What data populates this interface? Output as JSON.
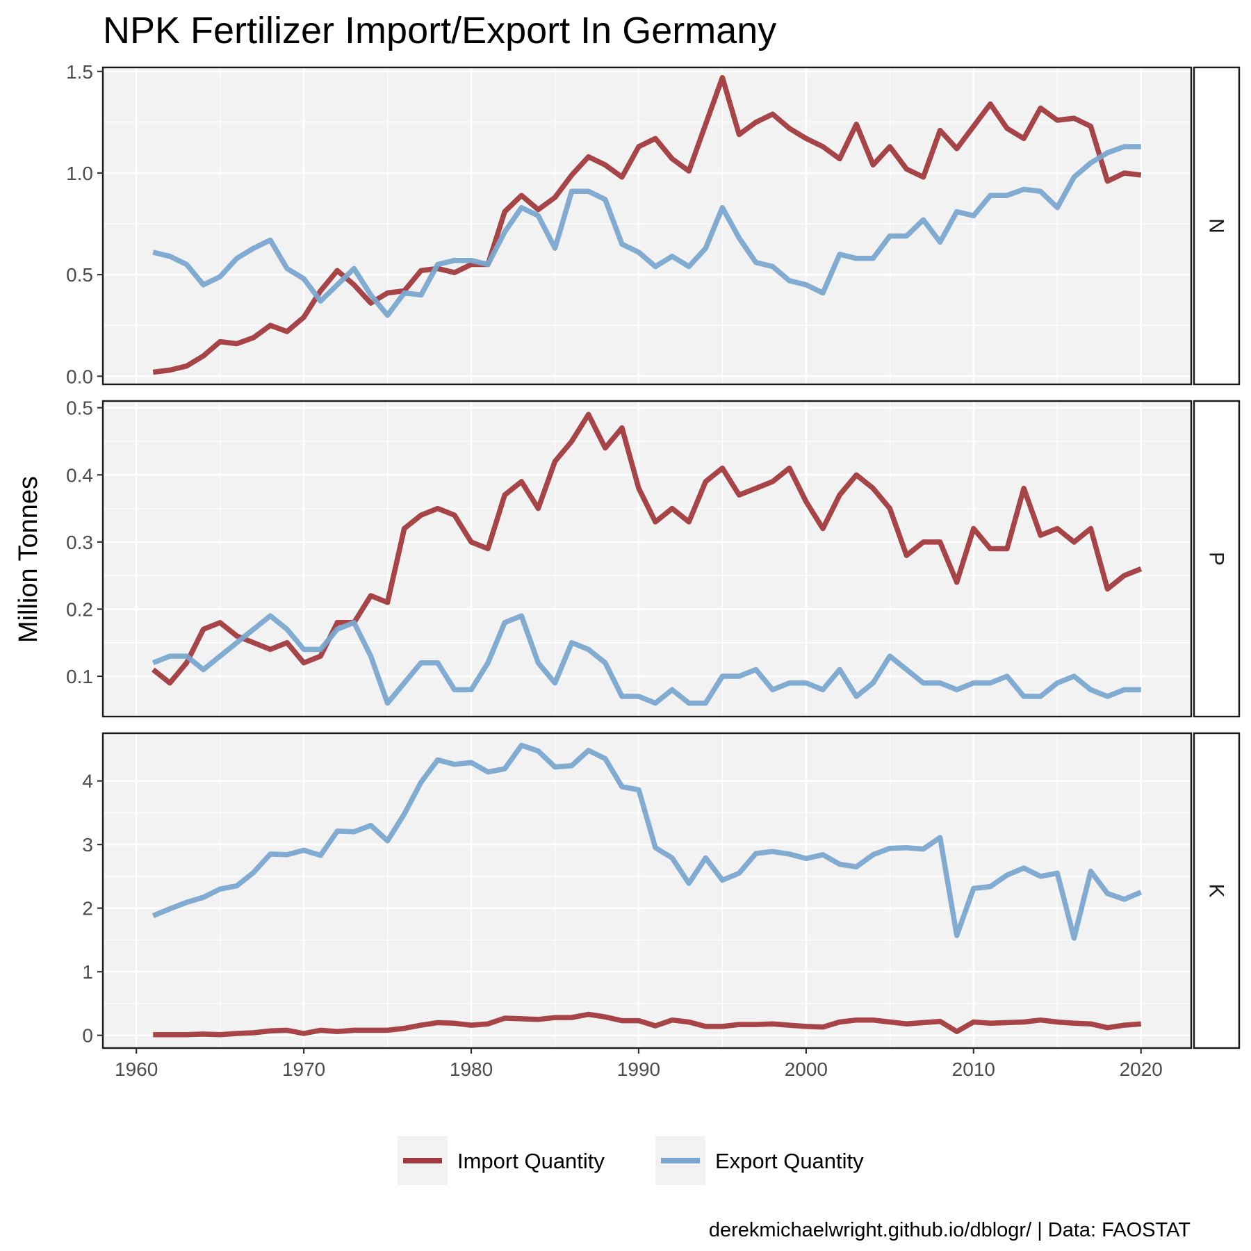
{
  "chart_data": {
    "type": "line",
    "title": "NPK Fertilizer Import/Export In Germany",
    "ylabel": "Million Tonnes",
    "xlabel": "",
    "caption": "derekmichaelwright.github.io/dblogr/ | Data: FAOSTAT",
    "x_ticks": [
      1960,
      1970,
      1980,
      1990,
      2000,
      2010,
      2020
    ],
    "xlim": [
      1958,
      2023
    ],
    "grid": true,
    "legend_position": "bottom",
    "series_styles": [
      {
        "name": "Import Quantity",
        "color": "#a13a3e"
      },
      {
        "name": "Export Quantity",
        "color": "#7aa6cf"
      }
    ],
    "x": [
      1961,
      1962,
      1963,
      1964,
      1965,
      1966,
      1967,
      1968,
      1969,
      1970,
      1971,
      1972,
      1973,
      1974,
      1975,
      1976,
      1977,
      1978,
      1979,
      1980,
      1981,
      1982,
      1983,
      1984,
      1985,
      1986,
      1987,
      1988,
      1989,
      1990,
      1991,
      1992,
      1993,
      1994,
      1995,
      1996,
      1997,
      1998,
      1999,
      2000,
      2001,
      2002,
      2003,
      2004,
      2005,
      2006,
      2007,
      2008,
      2009,
      2010,
      2011,
      2012,
      2013,
      2014,
      2015,
      2016,
      2017,
      2018,
      2019,
      2020
    ],
    "panels": [
      {
        "label": "N",
        "ylim": [
          -0.04,
          1.52
        ],
        "y_ticks": [
          0.0,
          0.5,
          1.0,
          1.5
        ],
        "y_tick_labels": [
          "0.0",
          "0.5",
          "1.0",
          "1.5"
        ],
        "series": [
          {
            "name": "Import Quantity",
            "values": [
              0.02,
              0.03,
              0.05,
              0.1,
              0.17,
              0.16,
              0.19,
              0.25,
              0.22,
              0.29,
              0.42,
              0.52,
              0.45,
              0.36,
              0.41,
              0.42,
              0.52,
              0.53,
              0.51,
              0.55,
              0.55,
              0.81,
              0.89,
              0.82,
              0.88,
              0.99,
              1.08,
              1.04,
              0.98,
              1.13,
              1.17,
              1.07,
              1.01,
              1.24,
              1.47,
              1.19,
              1.25,
              1.29,
              1.22,
              1.17,
              1.13,
              1.07,
              1.24,
              1.04,
              1.13,
              1.02,
              0.98,
              1.21,
              1.12,
              1.23,
              1.34,
              1.22,
              1.17,
              1.32,
              1.26,
              1.27,
              1.23,
              0.96,
              1.0,
              0.99
            ]
          },
          {
            "name": "Export Quantity",
            "values": [
              0.61,
              0.59,
              0.55,
              0.45,
              0.49,
              0.58,
              0.63,
              0.67,
              0.53,
              0.48,
              0.37,
              0.45,
              0.53,
              0.4,
              0.3,
              0.41,
              0.4,
              0.55,
              0.57,
              0.57,
              0.55,
              0.71,
              0.83,
              0.79,
              0.63,
              0.91,
              0.91,
              0.87,
              0.65,
              0.61,
              0.54,
              0.59,
              0.54,
              0.63,
              0.83,
              0.68,
              0.56,
              0.54,
              0.47,
              0.45,
              0.41,
              0.6,
              0.58,
              0.58,
              0.69,
              0.69,
              0.77,
              0.66,
              0.81,
              0.79,
              0.89,
              0.89,
              0.92,
              0.91,
              0.83,
              0.98,
              1.05,
              1.1,
              1.13,
              1.13
            ]
          }
        ]
      },
      {
        "label": "P",
        "ylim": [
          0.04,
          0.51
        ],
        "y_ticks": [
          0.1,
          0.2,
          0.3,
          0.4,
          0.5
        ],
        "y_tick_labels": [
          "0.1",
          "0.2",
          "0.3",
          "0.4",
          "0.5"
        ],
        "series": [
          {
            "name": "Import Quantity",
            "values": [
              0.11,
              0.09,
              0.12,
              0.17,
              0.18,
              0.16,
              0.15,
              0.14,
              0.15,
              0.12,
              0.13,
              0.18,
              0.18,
              0.22,
              0.21,
              0.32,
              0.34,
              0.35,
              0.34,
              0.3,
              0.29,
              0.37,
              0.39,
              0.35,
              0.42,
              0.45,
              0.49,
              0.44,
              0.47,
              0.38,
              0.33,
              0.35,
              0.33,
              0.39,
              0.41,
              0.37,
              0.38,
              0.39,
              0.41,
              0.36,
              0.32,
              0.37,
              0.4,
              0.38,
              0.35,
              0.28,
              0.3,
              0.3,
              0.24,
              0.32,
              0.29,
              0.29,
              0.38,
              0.31,
              0.32,
              0.3,
              0.32,
              0.23,
              0.25,
              0.26
            ]
          },
          {
            "name": "Export Quantity",
            "values": [
              0.12,
              0.13,
              0.13,
              0.11,
              0.13,
              0.15,
              0.17,
              0.19,
              0.17,
              0.14,
              0.14,
              0.17,
              0.18,
              0.13,
              0.06,
              0.09,
              0.12,
              0.12,
              0.08,
              0.08,
              0.12,
              0.18,
              0.19,
              0.12,
              0.09,
              0.15,
              0.14,
              0.12,
              0.07,
              0.07,
              0.06,
              0.08,
              0.06,
              0.06,
              0.1,
              0.1,
              0.11,
              0.08,
              0.09,
              0.09,
              0.08,
              0.11,
              0.07,
              0.09,
              0.13,
              0.11,
              0.09,
              0.09,
              0.08,
              0.09,
              0.09,
              0.1,
              0.07,
              0.07,
              0.09,
              0.1,
              0.08,
              0.07,
              0.08,
              0.08
            ]
          }
        ]
      },
      {
        "label": "K",
        "ylim": [
          -0.2,
          4.75
        ],
        "y_ticks": [
          0,
          1,
          2,
          3,
          4
        ],
        "y_tick_labels": [
          "0",
          "1",
          "2",
          "3",
          "4"
        ],
        "series": [
          {
            "name": "Import Quantity",
            "values": [
              0.01,
              0.01,
              0.01,
              0.02,
              0.01,
              0.03,
              0.04,
              0.07,
              0.08,
              0.03,
              0.08,
              0.06,
              0.08,
              0.08,
              0.08,
              0.11,
              0.16,
              0.2,
              0.19,
              0.16,
              0.18,
              0.27,
              0.26,
              0.25,
              0.28,
              0.28,
              0.33,
              0.29,
              0.23,
              0.23,
              0.15,
              0.24,
              0.21,
              0.14,
              0.14,
              0.17,
              0.17,
              0.18,
              0.16,
              0.14,
              0.13,
              0.21,
              0.24,
              0.24,
              0.21,
              0.18,
              0.2,
              0.22,
              0.06,
              0.21,
              0.19,
              0.2,
              0.21,
              0.24,
              0.21,
              0.19,
              0.18,
              0.12,
              0.16,
              0.18
            ]
          },
          {
            "name": "Export Quantity",
            "values": [
              1.88,
              1.99,
              2.09,
              2.17,
              2.3,
              2.35,
              2.56,
              2.85,
              2.84,
              2.91,
              2.83,
              3.21,
              3.2,
              3.3,
              3.06,
              3.48,
              3.98,
              4.33,
              4.26,
              4.29,
              4.14,
              4.19,
              4.56,
              4.47,
              4.22,
              4.24,
              4.48,
              4.35,
              3.91,
              3.86,
              2.95,
              2.79,
              2.39,
              2.79,
              2.44,
              2.55,
              2.86,
              2.89,
              2.85,
              2.78,
              2.84,
              2.69,
              2.65,
              2.84,
              2.94,
              2.95,
              2.93,
              3.11,
              1.57,
              2.31,
              2.34,
              2.52,
              2.63,
              2.5,
              2.55,
              1.53,
              2.58,
              2.23,
              2.14,
              2.25
            ]
          }
        ]
      }
    ],
    "legend": [
      {
        "name": "Import Quantity",
        "label": "Import Quantity"
      },
      {
        "name": "Export Quantity",
        "label": "Export Quantity"
      }
    ]
  }
}
